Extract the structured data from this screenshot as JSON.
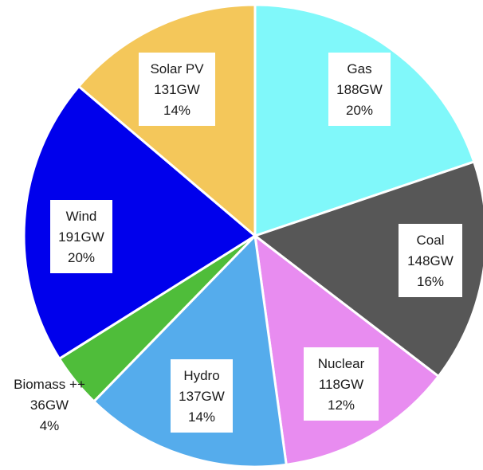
{
  "chart_data": {
    "type": "pie",
    "title": "",
    "slices": [
      {
        "name": "Gas",
        "capacity": "188GW",
        "share": "20%",
        "value": 188,
        "color": "#80f8fa"
      },
      {
        "name": "Coal",
        "capacity": "148GW",
        "share": "16%",
        "value": 148,
        "color": "#575757"
      },
      {
        "name": "Nuclear",
        "capacity": "118GW",
        "share": "12%",
        "value": 118,
        "color": "#e88cf0"
      },
      {
        "name": "Hydro",
        "capacity": "137GW",
        "share": "14%",
        "value": 137,
        "color": "#55acec"
      },
      {
        "name": "Biomass ++",
        "capacity": "36GW",
        "share": "4%",
        "value": 36,
        "color": "#4fbd3a"
      },
      {
        "name": "Wind",
        "capacity": "191GW",
        "share": "20%",
        "value": 191,
        "color": "#0000ec"
      },
      {
        "name": "Solar PV",
        "capacity": "131GW",
        "share": "14%",
        "value": 131,
        "color": "#f4c75a"
      }
    ]
  }
}
